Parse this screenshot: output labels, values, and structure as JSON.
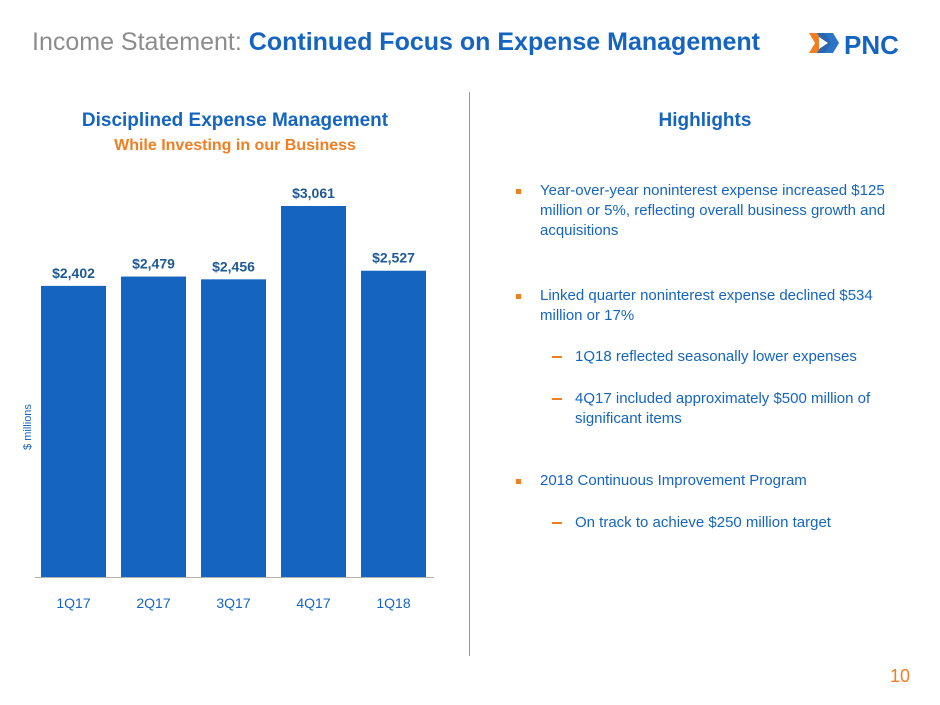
{
  "header": {
    "title_prefix": "Income Statement:",
    "title_main": "Continued Focus on Expense Management",
    "logo_text": "PNC",
    "colors": {
      "brand_blue": "#1565c0",
      "accent_orange": "#f07e22"
    }
  },
  "chart_data": {
    "type": "bar",
    "title": "Disciplined Expense Management",
    "subtitle": "While Investing in our Business",
    "categories": [
      "1Q17",
      "2Q17",
      "3Q17",
      "4Q17",
      "1Q18"
    ],
    "values": [
      2402,
      2479,
      2456,
      3061,
      2527
    ],
    "data_labels": [
      "$2,402",
      "$2,479",
      "$2,456",
      "$3,061",
      "$2,527"
    ],
    "xlabel": "",
    "ylabel": "$ millions",
    "ylim": [
      0,
      3061
    ],
    "grid": false,
    "bar_color": "#1565c0"
  },
  "highlights": {
    "title": "Highlights",
    "items": [
      {
        "text": "Year-over-year noninterest expense increased $125 million or 5%, reflecting overall business growth and acquisitions",
        "subs": []
      },
      {
        "text": "Linked quarter noninterest expense declined $534 million or 17%",
        "subs": [
          "1Q18 reflected seasonally lower expenses",
          "4Q17 included approximately $500 million of significant items"
        ]
      },
      {
        "text": "2018 Continuous Improvement Program",
        "subs": [
          "On track to achieve $250 million target"
        ]
      }
    ]
  },
  "page_number": "10"
}
